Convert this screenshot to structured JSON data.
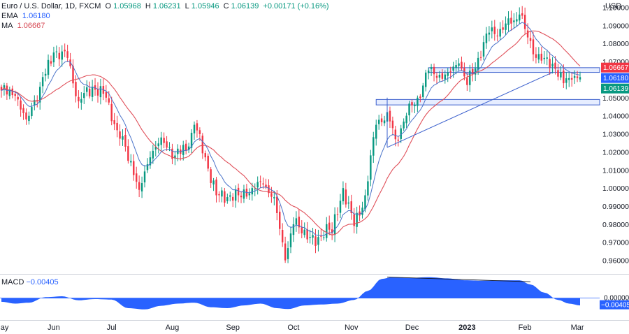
{
  "header": {
    "symbol": "Euro / U.S. Dollar, 1D, FXCM",
    "o_label": "O",
    "o": "1.05968",
    "h_label": "H",
    "h": "1.06231",
    "l_label": "L",
    "l": "1.05946",
    "c_label": "C",
    "c": "1.06139",
    "change": "+0.00171 (+0.16%)",
    "ema_label": "EMA",
    "ema_value": "1.06180",
    "ma_label": "MA",
    "ma_value": "1.06667",
    "currency": "USD"
  },
  "macd": {
    "label": "MACD",
    "value": "−0.00405",
    "axis_zero": "0.00000",
    "axis_value": "−0.00405"
  },
  "colors": {
    "up": "#089981",
    "down": "#f23645",
    "ema": "#2962ff",
    "ma": "#e0505a",
    "zone_fill": "#dbe6ff",
    "zone_stroke": "#3a5fcd",
    "macd": "#2962ff",
    "tag_ma": "#f23645",
    "tag_ema": "#2962ff",
    "tag_close": "#089981"
  },
  "chart_data": {
    "type": "candlestick",
    "title": "Euro / U.S. Dollar, 1D, FXCM",
    "ylim": [
      0.9525,
      1.1025
    ],
    "y_ticks": [
      "1.10000",
      "1.09000",
      "1.08000",
      "1.07000",
      "1.06000",
      "1.05000",
      "1.04000",
      "1.03000",
      "1.02000",
      "1.01000",
      "1.00000",
      "0.99000",
      "0.98000",
      "0.97000",
      "0.96000"
    ],
    "price_tags": [
      "1.06667",
      "1.06180",
      "1.06139"
    ],
    "x_labels": [
      "May",
      "Jun",
      "Jul",
      "Aug",
      "Sep",
      "Oct",
      "Nov",
      "Dec",
      "2023",
      "Feb",
      "Mar"
    ],
    "x_label_bar_index": [
      0,
      19,
      40,
      62,
      84,
      106,
      127,
      149,
      169,
      190,
      209
    ],
    "n_bars": 211,
    "close_anchors": [
      [
        0,
        1.054
      ],
      [
        5,
        1.051
      ],
      [
        9,
        1.038
      ],
      [
        14,
        1.056
      ],
      [
        19,
        1.075
      ],
      [
        24,
        1.072
      ],
      [
        28,
        1.048
      ],
      [
        33,
        1.056
      ],
      [
        38,
        1.05
      ],
      [
        42,
        1.032
      ],
      [
        47,
        1.015
      ],
      [
        50,
        0.999
      ],
      [
        54,
        1.017
      ],
      [
        58,
        1.028
      ],
      [
        63,
        1.018
      ],
      [
        68,
        1.023
      ],
      [
        70,
        1.035
      ],
      [
        74,
        1.017
      ],
      [
        78,
        0.996
      ],
      [
        82,
        0.995
      ],
      [
        86,
        0.996
      ],
      [
        91,
        1.0
      ],
      [
        95,
        1.002
      ],
      [
        99,
        0.995
      ],
      [
        103,
        0.96
      ],
      [
        106,
        0.98
      ],
      [
        110,
        0.977
      ],
      [
        114,
        0.968
      ],
      [
        118,
        0.98
      ],
      [
        120,
        0.975
      ],
      [
        124,
        1.0
      ],
      [
        128,
        0.979
      ],
      [
        132,
        0.996
      ],
      [
        136,
        1.035
      ],
      [
        140,
        1.042
      ],
      [
        143,
        1.027
      ],
      [
        147,
        1.04
      ],
      [
        151,
        1.05
      ],
      [
        155,
        1.065
      ],
      [
        158,
        1.061
      ],
      [
        162,
        1.064
      ],
      [
        166,
        1.069
      ],
      [
        169,
        1.057
      ],
      [
        173,
        1.072
      ],
      [
        177,
        1.086
      ],
      [
        181,
        1.088
      ],
      [
        185,
        1.091
      ],
      [
        188,
        1.096
      ],
      [
        190,
        1.088
      ],
      [
        193,
        1.074
      ],
      [
        197,
        1.072
      ],
      [
        201,
        1.066
      ],
      [
        204,
        1.058
      ],
      [
        207,
        1.06
      ],
      [
        208,
        1.062
      ],
      [
        210,
        1.06139
      ]
    ],
    "zones": [
      {
        "y_from": 1.064,
        "y_to": 1.0666,
        "x_from_index": 155,
        "x_to_index": 219
      },
      {
        "y_from": 1.046,
        "y_to": 1.049,
        "x_from_index": 136,
        "x_to_index": 219
      }
    ],
    "trendlines": [
      {
        "from": [
          140,
          1.0225
        ],
        "to": [
          200,
          1.064
        ]
      },
      {
        "from": [
          140,
          1.05
        ],
        "to": [
          140,
          1.0225
        ]
      }
    ],
    "macd_divergence": {
      "from": [
        140,
        0.0115
      ],
      "to": [
        192,
        0.009
      ]
    },
    "macd_ylim": [
      -0.012,
      0.0125
    ],
    "macd_anchors": [
      [
        0,
        -0.002
      ],
      [
        5,
        -0.003
      ],
      [
        10,
        -0.0025
      ],
      [
        16,
        0.0005
      ],
      [
        22,
        0.001
      ],
      [
        28,
        -0.0012
      ],
      [
        34,
        -0.0005
      ],
      [
        40,
        -0.0008
      ],
      [
        46,
        -0.0055
      ],
      [
        52,
        -0.0062
      ],
      [
        58,
        -0.0042
      ],
      [
        64,
        -0.003
      ],
      [
        70,
        -0.0025
      ],
      [
        76,
        -0.005
      ],
      [
        82,
        -0.0055
      ],
      [
        88,
        -0.004
      ],
      [
        94,
        -0.003
      ],
      [
        100,
        -0.0055
      ],
      [
        104,
        -0.006
      ],
      [
        110,
        -0.004
      ],
      [
        116,
        -0.0035
      ],
      [
        122,
        -0.003
      ],
      [
        128,
        -0.001
      ],
      [
        133,
        0.004
      ],
      [
        138,
        0.0105
      ],
      [
        142,
        0.0115
      ],
      [
        148,
        0.011
      ],
      [
        155,
        0.0115
      ],
      [
        162,
        0.0108
      ],
      [
        168,
        0.0098
      ],
      [
        175,
        0.0095
      ],
      [
        182,
        0.0098
      ],
      [
        188,
        0.0098
      ],
      [
        192,
        0.0075
      ],
      [
        197,
        0.003
      ],
      [
        202,
        -0.001
      ],
      [
        206,
        -0.003
      ],
      [
        210,
        -0.004
      ]
    ]
  }
}
